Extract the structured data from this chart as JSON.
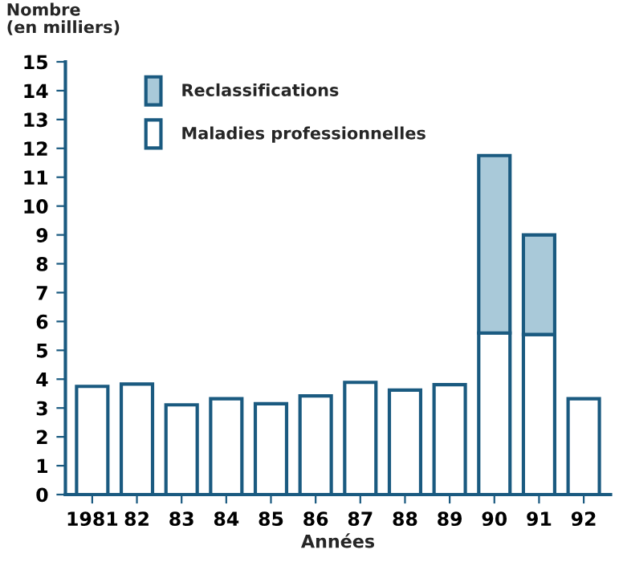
{
  "chart_data": {
    "type": "bar",
    "stacked": true,
    "ylabel": "Nombre\n(en milliers)",
    "xlabel": "Années",
    "categories": [
      "1981",
      "82",
      "83",
      "84",
      "85",
      "86",
      "87",
      "88",
      "89",
      "90",
      "91",
      "92"
    ],
    "series": [
      {
        "name": "Maladies professionnelles",
        "color": "#ffffff",
        "values": [
          3.75,
          3.83,
          3.11,
          3.32,
          3.15,
          3.42,
          3.89,
          3.62,
          3.81,
          5.6,
          5.55,
          3.32
        ]
      },
      {
        "name": "Reclassifications",
        "color": "#a9c9d9",
        "values": [
          null,
          null,
          null,
          null,
          null,
          null,
          null,
          null,
          null,
          6.15,
          3.45,
          null
        ]
      }
    ],
    "ylim": [
      0,
      15
    ],
    "yticks": [
      0,
      1,
      2,
      3,
      4,
      5,
      6,
      7,
      8,
      9,
      10,
      11,
      12,
      13,
      14,
      15
    ],
    "legend": "top left",
    "grid": false
  }
}
